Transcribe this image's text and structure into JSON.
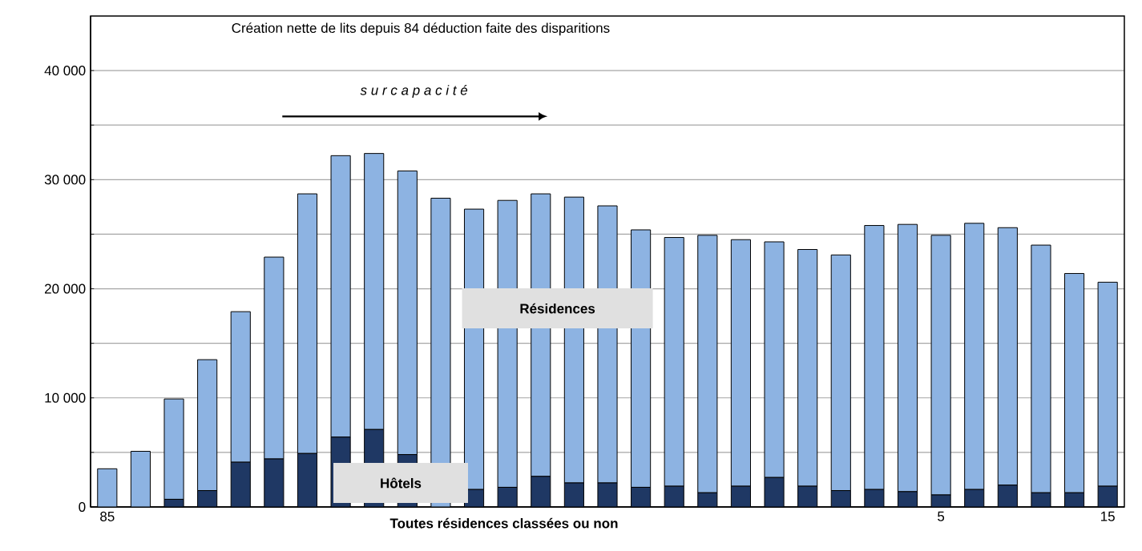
{
  "chart_data": {
    "type": "bar",
    "stacked": true,
    "title": "Création nette de lits depuis 84 déduction faite des disparitions",
    "xlabel": "Toutes résidences classées ou non",
    "annotations": [
      "s u r c a p a c i t é"
    ],
    "categories": [
      "85",
      null,
      null,
      null,
      null,
      null,
      null,
      null,
      null,
      null,
      null,
      null,
      null,
      null,
      null,
      null,
      null,
      null,
      null,
      null,
      null,
      null,
      null,
      null,
      null,
      "5",
      null,
      null,
      null,
      null,
      "15"
    ],
    "series": [
      {
        "name": "Hôtels",
        "color": "#1f3864",
        "values": [
          0,
          0,
          700,
          1500,
          4100,
          4400,
          4900,
          6400,
          7100,
          4800,
          null,
          1600,
          1800,
          2800,
          2200,
          2200,
          1800,
          1900,
          1300,
          1900,
          2700,
          1900,
          1500,
          1600,
          1400,
          1100,
          1600,
          2000,
          1300,
          1300,
          1900
        ]
      },
      {
        "name": "Résidences",
        "color": "#8db3e2",
        "values": [
          3500,
          5100,
          9200,
          12000,
          13800,
          18500,
          23800,
          25800,
          25300,
          26000,
          28300,
          25700,
          26300,
          25900,
          26200,
          25400,
          23600,
          22800,
          23600,
          22600,
          21600,
          21700,
          21600,
          24200,
          24500,
          23800,
          24400,
          23600,
          22700,
          20100,
          18700
        ]
      }
    ],
    "ylim": [
      0,
      45000
    ],
    "yticks": [
      0,
      {
        "value": 5000,
        "label": null
      },
      {
        "value": 10000,
        "label": "10 000"
      },
      {
        "value": 15000,
        "label": null
      },
      {
        "value": 20000,
        "label": "20 000"
      },
      {
        "value": 25000,
        "label": null
      },
      {
        "value": 30000,
        "label": "30 000"
      },
      {
        "value": 35000,
        "label": null
      },
      {
        "value": 40000,
        "label": "40 000"
      }
    ],
    "grid": "y",
    "legend": false
  }
}
